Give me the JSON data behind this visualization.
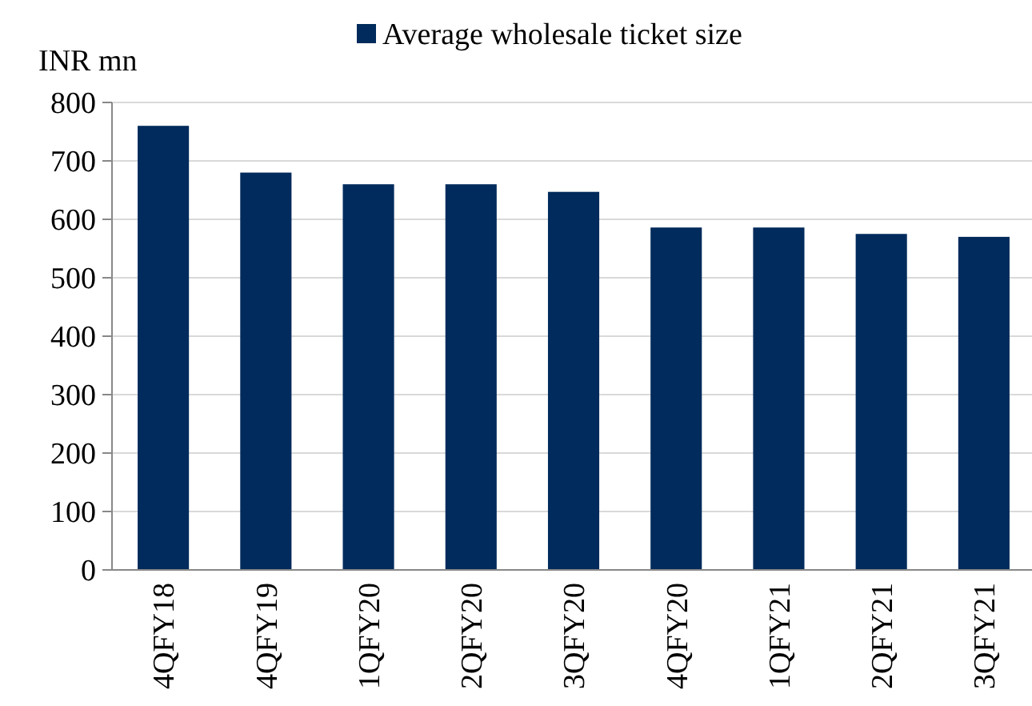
{
  "chart_data": {
    "type": "bar",
    "ylabel": "INR mn",
    "categories": [
      "4QFY18",
      "4QFY19",
      "1QFY20",
      "2QFY20",
      "3QFY20",
      "4QFY20",
      "1QFY21",
      "2QFY21",
      "3QFY21"
    ],
    "series": [
      {
        "name": "Average wholesale ticket size",
        "color": "#002b5c",
        "values": [
          760,
          680,
          660,
          660,
          647,
          586,
          586,
          575,
          570
        ]
      }
    ],
    "ylim": [
      0,
      800
    ],
    "yticks": [
      0,
      100,
      200,
      300,
      400,
      500,
      600,
      700,
      800
    ],
    "grid": "y",
    "legend": "top"
  }
}
